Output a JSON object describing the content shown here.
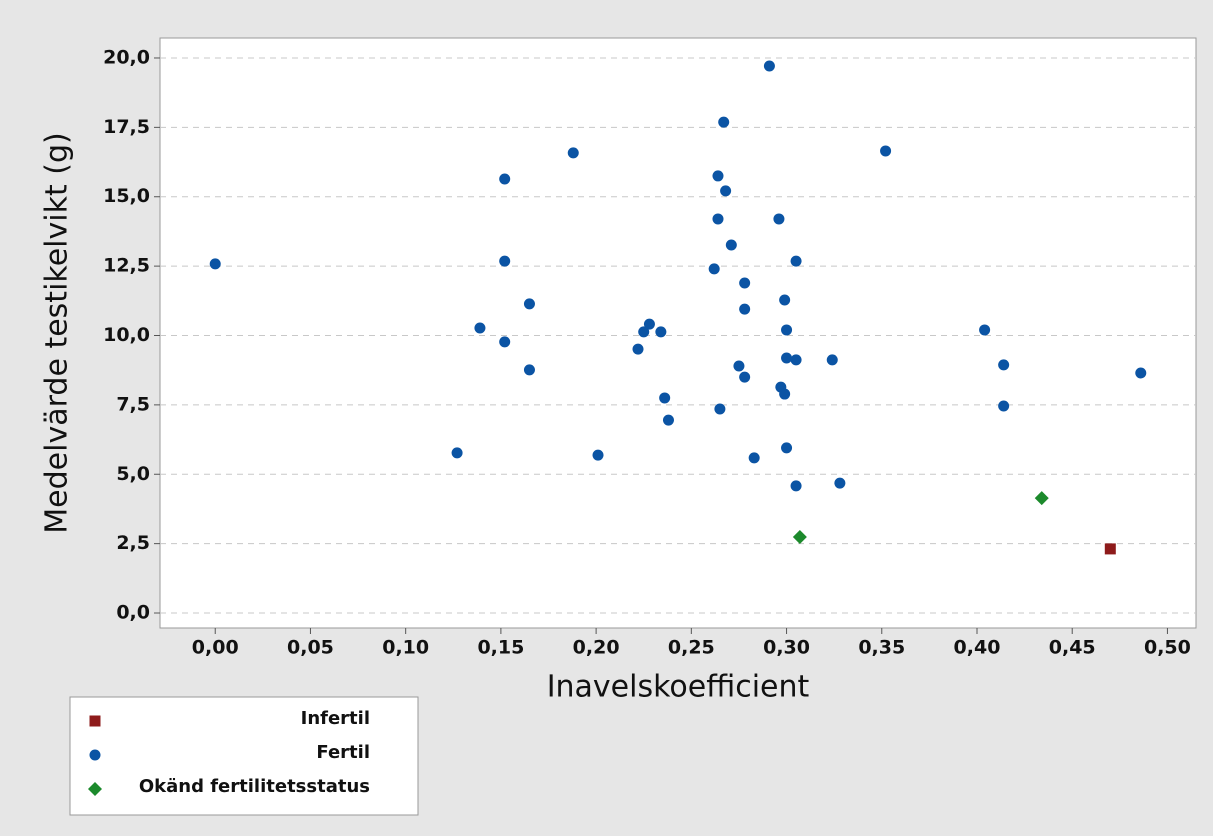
{
  "chart_data": {
    "type": "scatter",
    "xlabel": "Inavelskoefficient",
    "ylabel": "Medelvärde testikelvikt (g)",
    "xlim": [
      -0.029,
      0.515
    ],
    "ylim": [
      -0.54,
      20.72
    ],
    "xticks": [
      {
        "value": 0,
        "label": "0,00"
      },
      {
        "value": 0.05,
        "label": "0,05"
      },
      {
        "value": 0.1,
        "label": "0,10"
      },
      {
        "value": 0.15,
        "label": "0,15"
      },
      {
        "value": 0.2,
        "label": "0,20"
      },
      {
        "value": 0.25,
        "label": "0,25"
      },
      {
        "value": 0.3,
        "label": "0,30"
      },
      {
        "value": 0.35,
        "label": "0,35"
      },
      {
        "value": 0.4,
        "label": "0,40"
      },
      {
        "value": 0.45,
        "label": "0,45"
      },
      {
        "value": 0.5,
        "label": "0,50"
      }
    ],
    "yticks": [
      {
        "value": 0,
        "label": "0,0"
      },
      {
        "value": 2.5,
        "label": "2,5"
      },
      {
        "value": 5,
        "label": "5,0"
      },
      {
        "value": 7.5,
        "label": "7,5"
      },
      {
        "value": 10,
        "label": "10,0"
      },
      {
        "value": 12.5,
        "label": "12,5"
      },
      {
        "value": 15,
        "label": "15,0"
      },
      {
        "value": 17.5,
        "label": "17,5"
      },
      {
        "value": 20,
        "label": "20,0"
      }
    ],
    "grid": true,
    "legend": "bottom-left",
    "series": [
      {
        "name": "Infertil",
        "color": "#8e1b1b",
        "marker": "square",
        "x": [
          0.47
        ],
        "values": [
          2.31
        ]
      },
      {
        "name": "Fertil",
        "color": "#0b54a4",
        "marker": "circle",
        "x": [
          0.0,
          0.127,
          0.139,
          0.152,
          0.152,
          0.152,
          0.165,
          0.165,
          0.188,
          0.201,
          0.222,
          0.225,
          0.228,
          0.234,
          0.236,
          0.238,
          0.262,
          0.264,
          0.264,
          0.265,
          0.267,
          0.268,
          0.271,
          0.275,
          0.278,
          0.278,
          0.278,
          0.283,
          0.291,
          0.296,
          0.297,
          0.299,
          0.299,
          0.3,
          0.3,
          0.3,
          0.305,
          0.305,
          0.305,
          0.324,
          0.328,
          0.352,
          0.404,
          0.414,
          0.414,
          0.486
        ],
        "values": [
          12.58,
          5.77,
          10.27,
          15.64,
          12.68,
          9.77,
          11.14,
          8.76,
          16.58,
          5.69,
          9.51,
          10.13,
          10.41,
          10.13,
          7.75,
          6.95,
          12.4,
          15.75,
          14.2,
          7.35,
          17.69,
          15.21,
          13.26,
          8.9,
          11.89,
          10.95,
          8.5,
          5.59,
          19.71,
          14.2,
          8.14,
          11.28,
          7.89,
          5.95,
          10.2,
          9.19,
          12.68,
          9.12,
          4.58,
          9.12,
          4.68,
          16.65,
          10.2,
          8.94,
          7.46,
          8.65
        ]
      },
      {
        "name": "Okänd fertilitetsstatus",
        "color": "#1c8a2c",
        "marker": "diamond",
        "x": [
          0.307,
          0.434
        ],
        "values": [
          2.74,
          4.14
        ]
      }
    ]
  }
}
